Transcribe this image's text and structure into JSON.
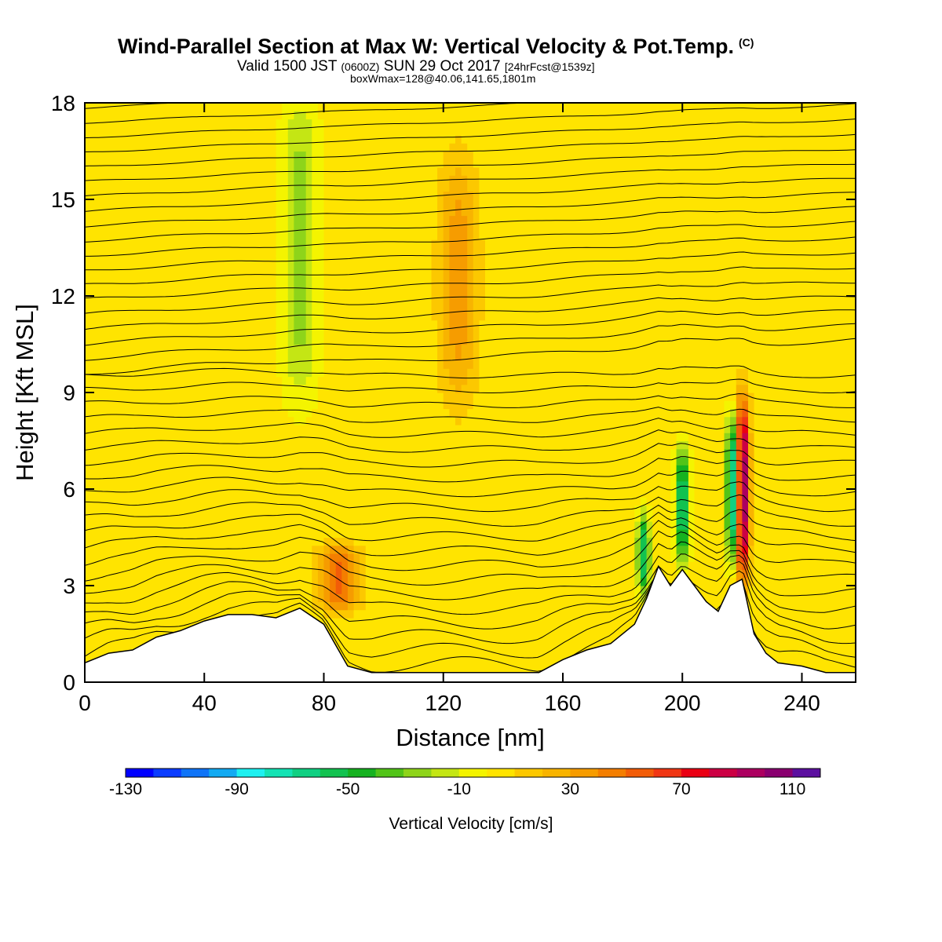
{
  "title": {
    "main": "Wind-Parallel Section at Max W: Vertical Velocity & Pot.Temp.",
    "copyright": "(C)",
    "valid_prefix": "Valid 1500 JST",
    "valid_zulu": "(0600Z)",
    "valid_date": "SUN 29 Oct 2017",
    "forecast": "[24hrFcst@1539z]",
    "boxwmax": "boxWmax=128@40.06,141.65,1801m"
  },
  "colorbar": {
    "label": "Vertical Velocity [cm/s]",
    "tick_labels": [
      "-130",
      "-90",
      "-50",
      "-10",
      "30",
      "70",
      "110"
    ],
    "colors": [
      "#0000ff",
      "#0b3cff",
      "#0f74f7",
      "#12aaf2",
      "#1ef0f0",
      "#14e3b4",
      "#10d082",
      "#12c250",
      "#16b220",
      "#52c418",
      "#8ed41a",
      "#c4e614",
      "#f4f400",
      "#ffe400",
      "#fcc800",
      "#f8b400",
      "#f69c00",
      "#f47e00",
      "#f25c08",
      "#f03614",
      "#ea0014",
      "#cc0044",
      "#ac0060",
      "#8a0070",
      "#5c10a0"
    ],
    "vmin": -130,
    "vmax": 120
  },
  "chart_data": {
    "type": "heatmap",
    "title": "Wind-Parallel Section at Max W: Vertical Velocity & Pot.Temp.",
    "xlabel": "Distance [nm]",
    "ylabel": "Height [Kft MSL]",
    "xlim": [
      0,
      258
    ],
    "ylim": [
      0,
      18
    ],
    "x_ticks": [
      "0",
      "40",
      "80",
      "120",
      "160",
      "200",
      "240"
    ],
    "y_ticks": [
      "0",
      "3",
      "6",
      "9",
      "12",
      "15",
      "18"
    ],
    "grid": false,
    "background_value_cm_s": 5,
    "vertical_velocity_features": [
      {
        "x_nm": 72,
        "z_kft_range": [
          9,
          18
        ],
        "w_cm_s": -30
      },
      {
        "x_nm": 125,
        "z_kft_range": [
          9,
          16
        ],
        "w_cm_s": 30
      },
      {
        "x_nm": 85,
        "z_kft_range": [
          2.5,
          4
        ],
        "w_cm_s": 50
      },
      {
        "x_nm": 187,
        "z_kft_range": [
          3,
          5
        ],
        "w_cm_s": -60
      },
      {
        "x_nm": 200,
        "z_kft_range": [
          4,
          7
        ],
        "w_cm_s": -70
      },
      {
        "x_nm": 217,
        "z_kft_range": [
          4,
          8
        ],
        "w_cm_s": -90
      },
      {
        "x_nm": 220,
        "z_kft_range": [
          3.5,
          8.5
        ],
        "w_cm_s": 110
      }
    ],
    "terrain_kft": {
      "x": [
        0,
        8,
        16,
        24,
        32,
        40,
        48,
        56,
        64,
        72,
        80,
        88,
        96,
        104,
        112,
        120,
        128,
        136,
        144,
        152,
        160,
        168,
        176,
        184,
        188,
        192,
        196,
        200,
        204,
        208,
        212,
        216,
        220,
        224,
        228,
        232,
        240,
        248,
        258
      ],
      "z": [
        0.6,
        0.9,
        1.0,
        1.4,
        1.6,
        1.9,
        2.1,
        2.1,
        2.0,
        2.3,
        1.8,
        0.5,
        0.3,
        0.3,
        0.3,
        0.3,
        0.3,
        0.3,
        0.3,
        0.3,
        0.7,
        1.0,
        1.2,
        1.8,
        2.6,
        3.6,
        3.0,
        3.5,
        3.0,
        2.5,
        2.2,
        3.0,
        3.2,
        1.5,
        0.9,
        0.6,
        0.5,
        0.3,
        0.3
      ]
    },
    "potential_temperature_contours": {
      "count": 40,
      "labelled": true
    }
  }
}
